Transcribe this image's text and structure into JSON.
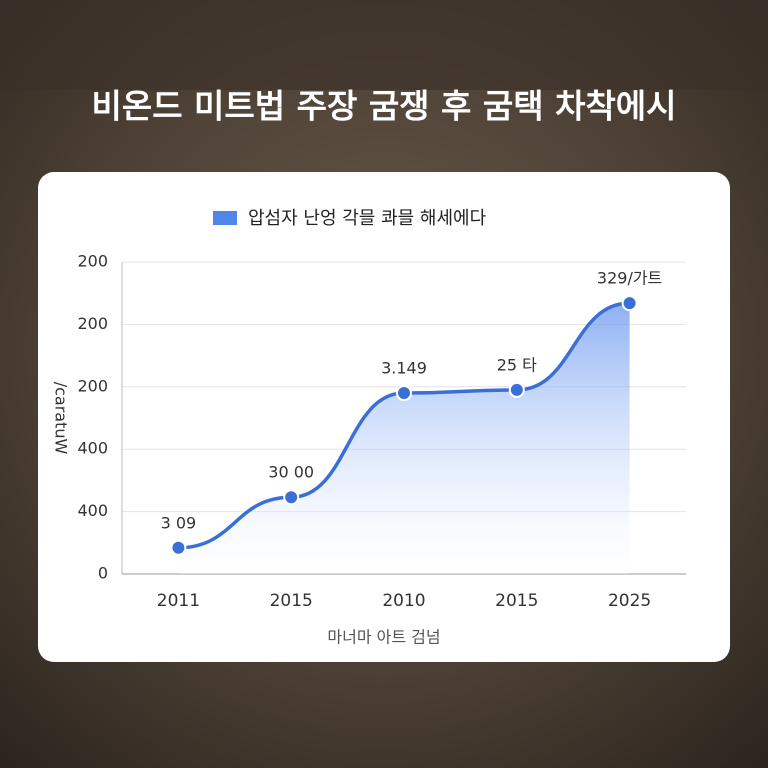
{
  "chart_data": {
    "type": "line",
    "title": "비온드 미트법 주장 굼쟁 후 굼택 차착에시",
    "x_label": "마너마 아트 검넘",
    "y_label": "/caratuW",
    "categories": [
      "2011",
      "2015",
      "2010",
      "2015",
      "2025"
    ],
    "series": [
      {
        "name": "압섬자 난엉 각믈 콰믈 해세에다",
        "color": "#3a6fd8",
        "values": [
          0.42,
          1.23,
          2.9,
          2.95,
          4.34
        ],
        "value_labels": [
          "3 09",
          "30 00",
          "3.149",
          "25 타",
          "329/가트"
        ]
      }
    ],
    "ylim": [
      0,
      5
    ],
    "yticks": [
      0,
      {
        "value": 1,
        "label": "400"
      },
      {
        "value": 2,
        "label": "400"
      },
      {
        "value": 3,
        "label": "200"
      },
      {
        "value": 4,
        "label": "200"
      },
      {
        "value": 5,
        "label": "200"
      }
    ],
    "grid": true
  }
}
